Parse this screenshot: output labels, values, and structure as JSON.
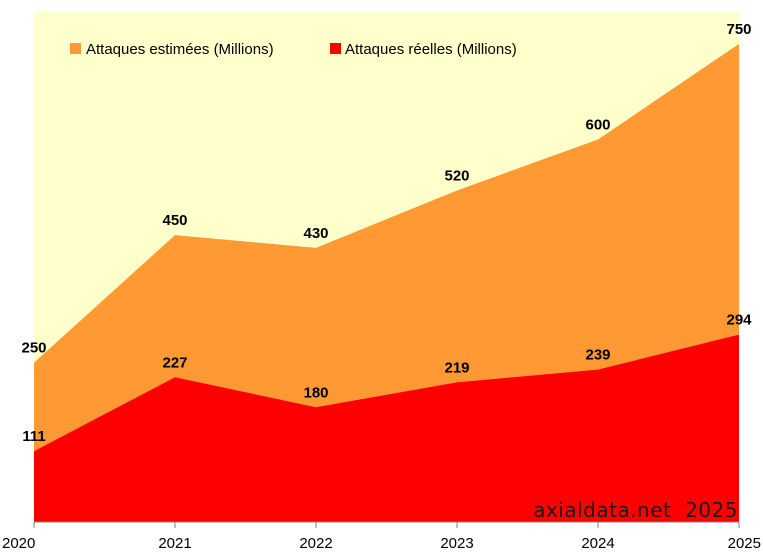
{
  "chart_data": {
    "type": "area",
    "categories": [
      "2020",
      "2021",
      "2022",
      "2023",
      "2024",
      "2025"
    ],
    "series": [
      {
        "name": "Attaques estimées (Millions)",
        "color": "#ff9933",
        "values": [
          250,
          450,
          430,
          520,
          600,
          750
        ]
      },
      {
        "name": "Attaques réelles (Millions)",
        "color": "#ff0000",
        "values": [
          111,
          227,
          180,
          219,
          239,
          294
        ]
      }
    ],
    "ylim": [
      0,
      800
    ],
    "background_color": "#ffffcc",
    "legend_position": "top-left",
    "watermark": "axialdata.net  2025"
  }
}
